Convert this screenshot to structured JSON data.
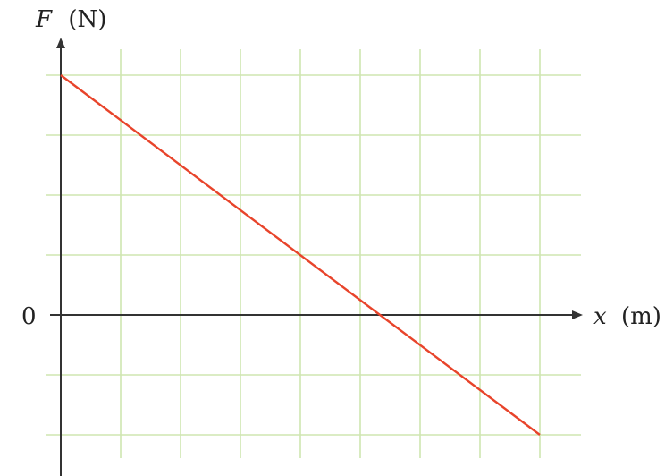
{
  "chart_data": {
    "type": "line",
    "title": "",
    "ylabel_var": "F",
    "ylabel_unit": "(N)",
    "xlabel_var": "x",
    "xlabel_unit": "(m)",
    "origin_label": "0",
    "grid": true,
    "xgrid_count": 9,
    "ygrid_above": 4,
    "ygrid_below": 2,
    "series": [
      {
        "color": "#e8442b",
        "points": [
          [
            0,
            4
          ],
          [
            5.33,
            0
          ],
          [
            8,
            -2
          ]
        ]
      }
    ]
  }
}
